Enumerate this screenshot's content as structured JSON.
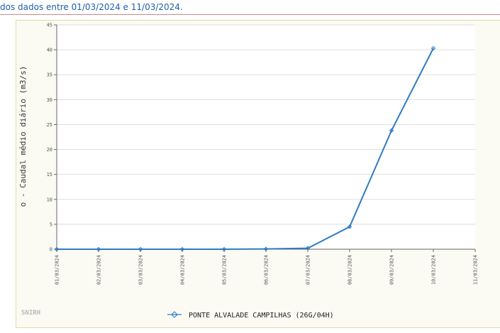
{
  "header": {
    "text": "dos dados entre 01/03/2024 e 11/03/2024."
  },
  "watermark": "SNIRH",
  "colors": {
    "series": "#2e7bc4",
    "grid": "#dedede",
    "frame": "#fbfbf4"
  },
  "chart_data": {
    "type": "line",
    "title": "",
    "xlabel": "",
    "ylabel": "o - Caudal médio diário (m3/s)",
    "ylim": [
      0,
      45
    ],
    "yticks": [
      0,
      5,
      10,
      15,
      20,
      25,
      30,
      35,
      40,
      45
    ],
    "xtick_labels": [
      "01/03/2024",
      "02/03/2024",
      "03/03/2024",
      "04/03/2024",
      "05/03/2024",
      "06/03/2024",
      "07/03/2024",
      "08/03/2024",
      "09/03/2024",
      "10/03/2024",
      "11/03/2024"
    ],
    "grid": true,
    "legend": "bottom-center",
    "series": [
      {
        "name": "PONTE ALVALADE CAMPILHAS (26G/04H)",
        "x": [
          "01/03/2024",
          "02/03/2024",
          "03/03/2024",
          "04/03/2024",
          "05/03/2024",
          "06/03/2024",
          "07/03/2024",
          "08/03/2024",
          "09/03/2024",
          "10/03/2024"
        ],
        "values": [
          0.0,
          0.0,
          0.0,
          0.0,
          0.0,
          0.05,
          0.2,
          4.5,
          23.8,
          40.3
        ]
      }
    ]
  }
}
